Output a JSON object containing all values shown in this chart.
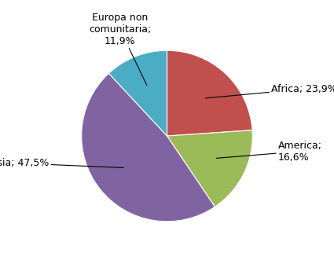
{
  "slices": [
    {
      "label": "Africa",
      "value": 23.9,
      "color": "#C0504D"
    },
    {
      "label": "America",
      "value": 16.6,
      "color": "#9BBB59"
    },
    {
      "label": "Asia",
      "value": 47.5,
      "color": "#8064A2"
    },
    {
      "label": "Europa non\ncomunitaria",
      "value": 11.9,
      "color": "#4BACC6"
    }
  ],
  "background_color": "#FFFFFF",
  "label_fontsize": 9,
  "startangle": 90
}
